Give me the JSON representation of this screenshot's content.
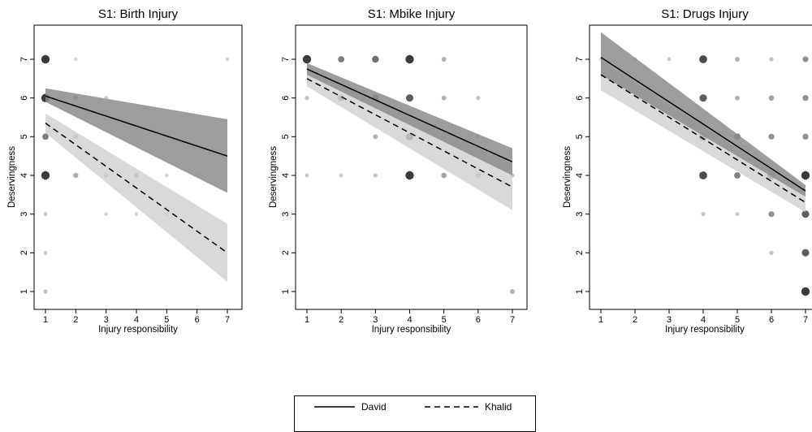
{
  "chart_data": [
    {
      "type": "scatter",
      "title": "S1: Birth Injury",
      "xlabel": "Injury responsibility",
      "ylabel": "Deservingness",
      "xlim": [
        1,
        7
      ],
      "ylim": [
        1,
        7
      ],
      "xticks": [
        "1",
        "2",
        "3",
        "4",
        "5",
        "6",
        "7"
      ],
      "yticks": [
        "1",
        "2",
        "3",
        "4",
        "5",
        "6",
        "7"
      ],
      "points": [
        {
          "x": 1,
          "y": 7,
          "w": 1.0
        },
        {
          "x": 1,
          "y": 6,
          "w": 1.0
        },
        {
          "x": 1,
          "y": 5,
          "w": 0.6
        },
        {
          "x": 1,
          "y": 4,
          "w": 1.0
        },
        {
          "x": 1,
          "y": 3,
          "w": 0.15
        },
        {
          "x": 1,
          "y": 2,
          "w": 0.15
        },
        {
          "x": 1,
          "y": 1,
          "w": 0.2
        },
        {
          "x": 2,
          "y": 7,
          "w": 0.1
        },
        {
          "x": 2,
          "y": 6,
          "w": 0.35
        },
        {
          "x": 2,
          "y": 5,
          "w": 0.3
        },
        {
          "x": 2,
          "y": 4,
          "w": 0.35
        },
        {
          "x": 3,
          "y": 6,
          "w": 0.15
        },
        {
          "x": 3,
          "y": 4,
          "w": 0.3
        },
        {
          "x": 3,
          "y": 3,
          "w": 0.1
        },
        {
          "x": 4,
          "y": 5,
          "w": 0.1
        },
        {
          "x": 4,
          "y": 4,
          "w": 0.35
        },
        {
          "x": 4,
          "y": 3,
          "w": 0.1
        },
        {
          "x": 5,
          "y": 4,
          "w": 0.1
        },
        {
          "x": 5,
          "y": 3,
          "w": 0.15
        },
        {
          "x": 6,
          "y": 4,
          "w": 0.1
        },
        {
          "x": 7,
          "y": 7,
          "w": 0.1
        }
      ],
      "series": [
        {
          "name": "David",
          "x": [
            1,
            7
          ],
          "y": [
            6.05,
            4.5
          ],
          "ci_low": [
            5.9,
            3.55
          ],
          "ci_high": [
            6.25,
            5.45
          ]
        },
        {
          "name": "Khalid",
          "x": [
            1,
            7
          ],
          "y": [
            5.35,
            2.0
          ],
          "ci_low": [
            5.1,
            1.25
          ],
          "ci_high": [
            5.6,
            2.75
          ]
        }
      ]
    },
    {
      "type": "scatter",
      "title": "S1: Mbike Injury",
      "xlabel": "Injury responsibility",
      "ylabel": "Deservingness",
      "xlim": [
        1,
        7
      ],
      "ylim": [
        1,
        7
      ],
      "xticks": [
        "1",
        "2",
        "3",
        "4",
        "5",
        "6",
        "7"
      ],
      "yticks": [
        "1",
        "2",
        "3",
        "4",
        "5",
        "6",
        "7"
      ],
      "points": [
        {
          "x": 1,
          "y": 7,
          "w": 1.0
        },
        {
          "x": 1,
          "y": 6,
          "w": 0.2
        },
        {
          "x": 1,
          "y": 4,
          "w": 0.15
        },
        {
          "x": 2,
          "y": 7,
          "w": 0.6
        },
        {
          "x": 2,
          "y": 6,
          "w": 0.6
        },
        {
          "x": 2,
          "y": 4,
          "w": 0.15
        },
        {
          "x": 3,
          "y": 7,
          "w": 0.7
        },
        {
          "x": 3,
          "y": 6,
          "w": 0.7
        },
        {
          "x": 3,
          "y": 5,
          "w": 0.3
        },
        {
          "x": 3,
          "y": 4,
          "w": 0.2
        },
        {
          "x": 4,
          "y": 7,
          "w": 1.0
        },
        {
          "x": 4,
          "y": 6,
          "w": 0.8
        },
        {
          "x": 4,
          "y": 5,
          "w": 0.8
        },
        {
          "x": 4,
          "y": 4,
          "w": 1.0
        },
        {
          "x": 5,
          "y": 7,
          "w": 0.3
        },
        {
          "x": 5,
          "y": 6,
          "w": 0.3
        },
        {
          "x": 5,
          "y": 5,
          "w": 0.5
        },
        {
          "x": 5,
          "y": 4,
          "w": 0.4
        },
        {
          "x": 6,
          "y": 6,
          "w": 0.2
        },
        {
          "x": 6,
          "y": 5,
          "w": 0.2
        },
        {
          "x": 6,
          "y": 4,
          "w": 0.4
        },
        {
          "x": 7,
          "y": 4,
          "w": 0.2
        },
        {
          "x": 7,
          "y": 1,
          "w": 0.3
        }
      ],
      "series": [
        {
          "name": "David",
          "x": [
            1,
            7
          ],
          "y": [
            6.75,
            4.35
          ],
          "ci_low": [
            6.6,
            4.0
          ],
          "ci_high": [
            6.9,
            4.7
          ]
        },
        {
          "name": "Khalid",
          "x": [
            1,
            7
          ],
          "y": [
            6.5,
            3.7
          ],
          "ci_low": [
            6.3,
            3.1
          ],
          "ci_high": [
            6.75,
            4.3
          ]
        }
      ]
    },
    {
      "type": "scatter",
      "title": "S1: Drugs Injury",
      "xlabel": "Injury responsibility",
      "ylabel": "Deservingness",
      "xlim": [
        1,
        7
      ],
      "ylim": [
        1,
        7
      ],
      "xticks": [
        "1",
        "2",
        "3",
        "4",
        "5",
        "6",
        "7"
      ],
      "yticks": [
        "1",
        "2",
        "3",
        "4",
        "5",
        "6",
        "7"
      ],
      "points": [
        {
          "x": 1,
          "y": 7,
          "w": 0.1
        },
        {
          "x": 2,
          "y": 7,
          "w": 0.15
        },
        {
          "x": 3,
          "y": 7,
          "w": 0.15
        },
        {
          "x": 4,
          "y": 7,
          "w": 0.9
        },
        {
          "x": 4,
          "y": 6,
          "w": 0.8
        },
        {
          "x": 4,
          "y": 5,
          "w": 0.9
        },
        {
          "x": 4,
          "y": 4,
          "w": 0.9
        },
        {
          "x": 4,
          "y": 3,
          "w": 0.2
        },
        {
          "x": 5,
          "y": 7,
          "w": 0.3
        },
        {
          "x": 5,
          "y": 6,
          "w": 0.3
        },
        {
          "x": 5,
          "y": 5,
          "w": 0.6
        },
        {
          "x": 5,
          "y": 4,
          "w": 0.6
        },
        {
          "x": 5,
          "y": 3,
          "w": 0.15
        },
        {
          "x": 6,
          "y": 7,
          "w": 0.2
        },
        {
          "x": 6,
          "y": 6,
          "w": 0.4
        },
        {
          "x": 6,
          "y": 5,
          "w": 0.5
        },
        {
          "x": 6,
          "y": 4,
          "w": 0.9
        },
        {
          "x": 6,
          "y": 3,
          "w": 0.5
        },
        {
          "x": 6,
          "y": 2,
          "w": 0.2
        },
        {
          "x": 7,
          "y": 7,
          "w": 0.5
        },
        {
          "x": 7,
          "y": 6,
          "w": 0.5
        },
        {
          "x": 7,
          "y": 5,
          "w": 0.5
        },
        {
          "x": 7,
          "y": 4,
          "w": 1.0
        },
        {
          "x": 7,
          "y": 3,
          "w": 0.8
        },
        {
          "x": 7,
          "y": 2,
          "w": 0.8
        },
        {
          "x": 7,
          "y": 1,
          "w": 1.0
        }
      ],
      "series": [
        {
          "name": "David",
          "x": [
            1,
            7
          ],
          "y": [
            7.05,
            3.6
          ],
          "ci_low": [
            6.6,
            3.45
          ],
          "ci_high": [
            7.7,
            3.75
          ]
        },
        {
          "name": "Khalid",
          "x": [
            1,
            7
          ],
          "y": [
            6.6,
            3.3
          ],
          "ci_low": [
            6.2,
            3.05
          ],
          "ci_high": [
            6.95,
            3.55
          ]
        }
      ]
    }
  ],
  "legend": {
    "david_label": "David",
    "khalid_label": "Khalid"
  }
}
